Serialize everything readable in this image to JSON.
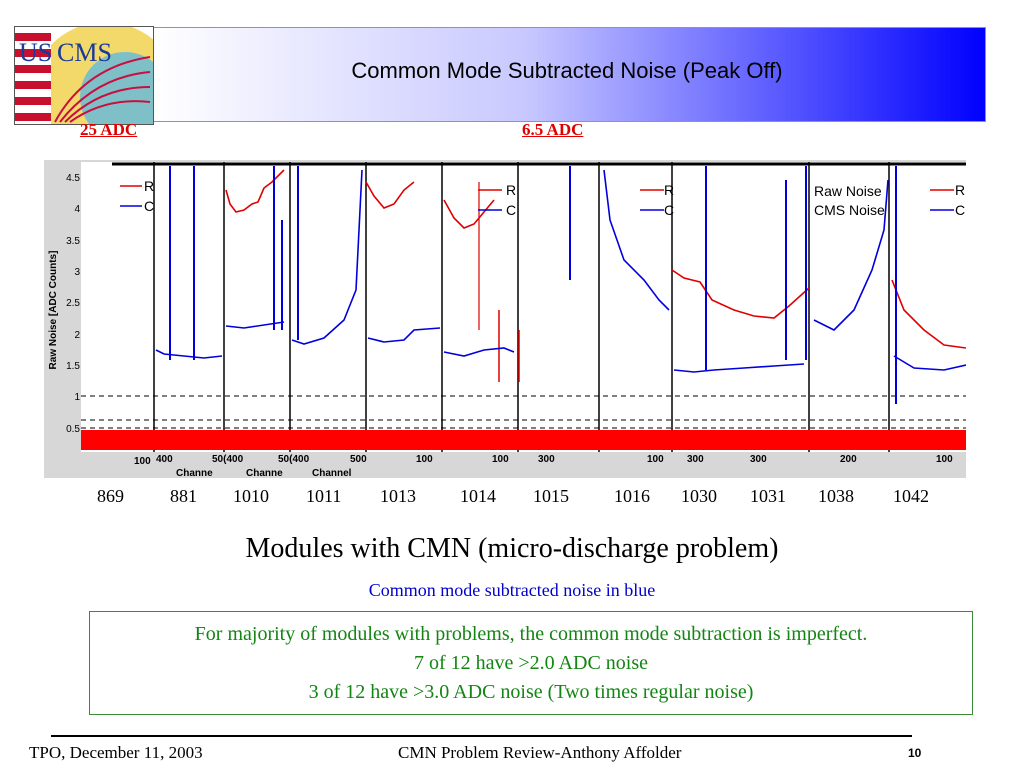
{
  "title": "Common Mode Subtracted Noise (Peak Off)",
  "logo": {
    "text_us": "US",
    "text_cms": "CMS"
  },
  "annotations": {
    "left_adc": "25 ADC",
    "right_adc": "6.5 ADC"
  },
  "plot": {
    "y_axis_label": "Raw Noise [ADC Counts]",
    "y_ticks": [
      "4.5",
      "4",
      "3.5",
      "3",
      "2.5",
      "2",
      "1.5",
      "1",
      "0.5"
    ],
    "x_labels": [
      "100",
      "400",
      "50(400",
      "50(400",
      "500",
      "100",
      "100",
      "300",
      "100",
      "300",
      "300",
      "200",
      "100"
    ],
    "x_axis_labels": [
      "Channe",
      "Channe",
      "Channel"
    ],
    "legend_left": [
      "R",
      "C"
    ],
    "legend_mid": [
      "Raw Noise",
      "CMS Noise"
    ],
    "colors": {
      "raw": "#e00000",
      "cms": "#0000dd",
      "band": "#ff0000"
    }
  },
  "modules": [
    "869",
    "881",
    "1010",
    "1011",
    "1013",
    "1014",
    "1015",
    "1016",
    "1030",
    "1031",
    "1038",
    "1042"
  ],
  "heading": "Modules with CMN (micro-discharge problem)",
  "subnote": "Common mode subtracted noise in blue",
  "box_lines": [
    "For majority of modules with problems, the common mode subtraction is imperfect.",
    "7 of  12 have >2.0 ADC noise",
    "3 of  12 have >3.0 ADC noise (Two times regular noise)"
  ],
  "footer": {
    "left": "TPO, December 11, 2003",
    "center": "CMN Problem Review-Anthony Affolder",
    "page": "10"
  }
}
